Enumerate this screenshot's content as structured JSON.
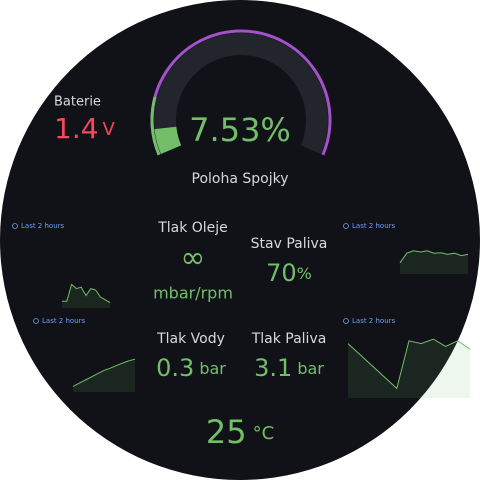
{
  "battery": {
    "label": "Baterie",
    "value": 1.4,
    "unit": "V"
  },
  "gauge": {
    "value": 7.53,
    "unit": "%",
    "range": [
      0,
      100
    ],
    "label": "Poloha Spojky"
  },
  "stats": [
    {
      "label": "Tlak Oleje",
      "value": "∞",
      "unit": "mbar/rpm"
    },
    {
      "label": "Stav Paliva",
      "value": 70,
      "unit": "%"
    },
    {
      "label": "Tlak Vody",
      "value": 0.3,
      "unit": "bar"
    },
    {
      "label": "Tlak Paliva",
      "value": 3.1,
      "unit": "bar"
    }
  ],
  "temperature": {
    "value": 25,
    "unit": "°C"
  },
  "sparklines": [
    {
      "label": "Last 2 hours",
      "values": [
        10,
        10,
        70,
        55,
        60,
        30,
        55,
        50,
        25,
        15,
        5
      ]
    },
    {
      "label": "Last 2 hours",
      "values": [
        30,
        70,
        80,
        75,
        80,
        70,
        72,
        65,
        70,
        60,
        65
      ]
    },
    {
      "label": "Last 2 hours",
      "values": [
        5,
        15,
        25,
        35,
        45,
        55,
        62,
        70,
        78,
        85,
        90
      ]
    },
    {
      "label": "Last 2 hours",
      "values": [
        90,
        70,
        50,
        30,
        10,
        95,
        90,
        98,
        85,
        95,
        80
      ]
    }
  ]
}
